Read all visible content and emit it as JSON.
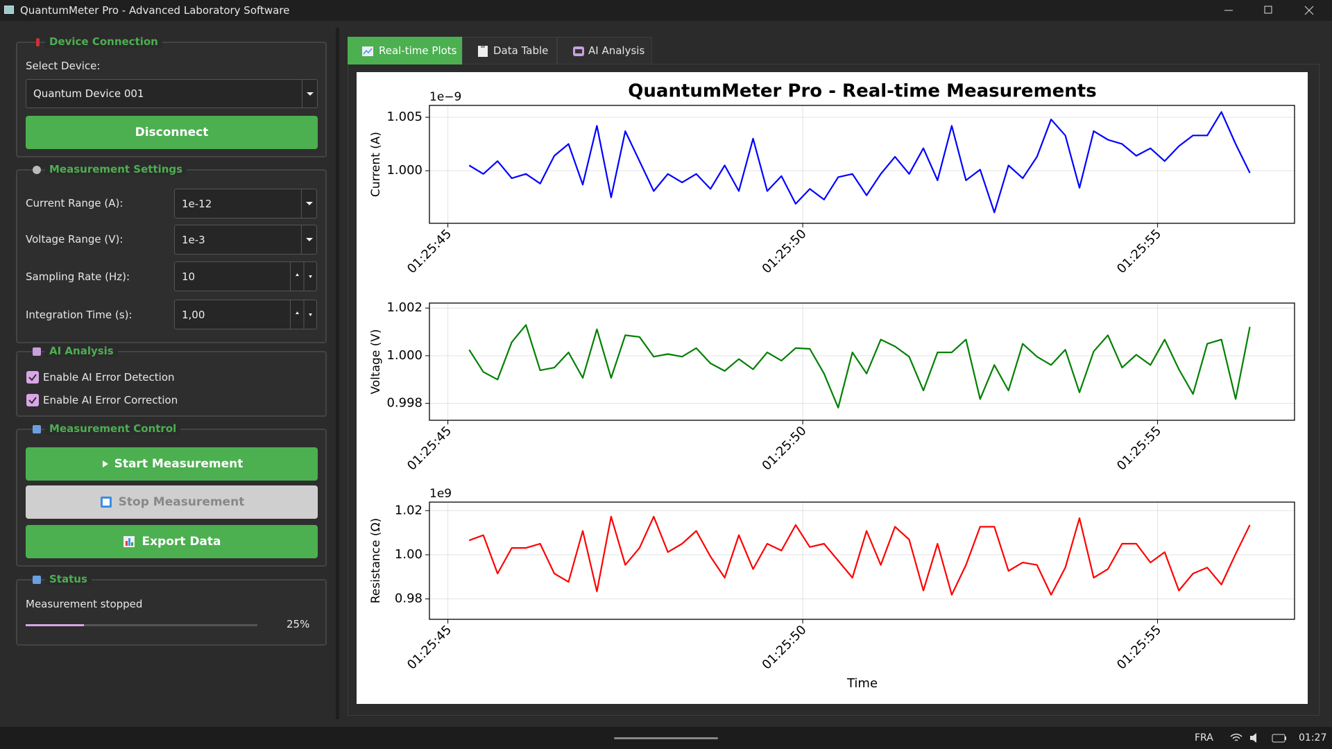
{
  "window": {
    "title": "QuantumMeter Pro - Advanced Laboratory Software"
  },
  "device": {
    "title": "Device Connection",
    "select_label": "Select Device:",
    "device": "Quantum Device 001",
    "button": "Disconnect"
  },
  "settings": {
    "title": "Measurement Settings",
    "rows": [
      [
        "Current Range (A):",
        "1e-12"
      ],
      [
        "Voltage Range (V):",
        "1e-3"
      ],
      [
        "Sampling Rate (Hz):",
        "10"
      ],
      [
        "Integration Time (s):",
        "1,00"
      ]
    ]
  },
  "ai": {
    "title": "AI Analysis",
    "options": [
      "Enable AI Error Detection",
      "Enable AI Error Correction"
    ]
  },
  "control": {
    "title": "Measurement Control",
    "buttons": [
      "Start Measurement",
      "Stop Measurement",
      "Export Data"
    ]
  },
  "status": {
    "title": "Status",
    "message": "Measurement stopped",
    "progress": {
      "value": 25,
      "label": "25%"
    }
  },
  "tabs": [
    "Real-time Plots",
    "Data Table",
    "AI Analysis"
  ],
  "figure": {
    "title": "QuantumMeter Pro - Real-time Measurements",
    "xlabel": "Time"
  },
  "chart_data": [
    {
      "type": "line",
      "ylabel": "Current (A)",
      "offset_label": "1e−9",
      "color": "#0000ff",
      "grid": true,
      "x": [
        5145.3,
        5145.5,
        5145.7,
        5145.9,
        5146.1,
        5146.3,
        5146.5,
        5146.7,
        5146.9,
        5147.1,
        5147.3,
        5147.5,
        5147.7,
        5147.9,
        5148.1,
        5148.3,
        5148.5,
        5148.7,
        5148.9,
        5149.1,
        5149.3,
        5149.5,
        5149.7,
        5149.9,
        5150.1,
        5150.3,
        5150.5,
        5150.7,
        5150.9,
        5151.1,
        5151.3,
        5151.5,
        5151.7,
        5151.9,
        5152.1,
        5152.3,
        5152.5,
        5152.7,
        5152.9,
        5153.1,
        5153.3,
        5153.5,
        5153.7,
        5153.9,
        5154.1,
        5154.3,
        5154.5,
        5154.7,
        5154.9,
        5155.1,
        5155.3,
        5155.5,
        5155.7,
        5155.9,
        5156.1,
        5156.3
      ],
      "values": [
        1.0005e-09,
        9.997e-10,
        1.0009e-09,
        9.993e-10,
        9.997e-10,
        9.988e-10,
        1.0014e-09,
        1.0025e-09,
        9.987e-10,
        1.0042e-09,
        9.975e-10,
        1.0037e-09,
        1.0009e-09,
        9.981e-10,
        9.997e-10,
        9.989e-10,
        9.997e-10,
        9.983e-10,
        1.0005e-09,
        9.981e-10,
        1.003e-09,
        9.981e-10,
        9.995e-10,
        9.969e-10,
        9.983e-10,
        9.973e-10,
        9.994e-10,
        9.997e-10,
        9.977e-10,
        9.997e-10,
        1.0013e-09,
        9.997e-10,
        1.0021e-09,
        9.991e-10,
        1.0042e-09,
        9.991e-10,
        1.0001e-09,
        9.961e-10,
        1.0005e-09,
        9.993e-10,
        1.0013e-09,
        1.0048e-09,
        1.0033e-09,
        9.984e-10,
        1.0037e-09,
        1.0029e-09,
        1.0025e-09,
        1.0014e-09,
        1.0021e-09,
        1.0009e-09,
        1.0023e-09,
        1.0033e-09,
        1.0033e-09,
        1.0055e-09,
        1.0025e-09,
        9.998e-10
      ],
      "xlim": [
        5144.74,
        5156.93
      ],
      "xticks": [
        {
          "value": 5145,
          "label": "01:25:45"
        },
        {
          "value": 5150,
          "label": "01:25:50"
        },
        {
          "value": 5155,
          "label": "01:25:55"
        }
      ],
      "ylim": [
        9.9508e-10,
        1.00611e-09
      ],
      "yticks": [
        {
          "value": 1e-09,
          "label": "1.000"
        },
        {
          "value": 1.005e-09,
          "label": "1.005"
        }
      ]
    },
    {
      "type": "line",
      "ylabel": "Voltage (V)",
      "color": "#008000",
      "grid": true,
      "x": [
        5145.3,
        5145.5,
        5145.7,
        5145.9,
        5146.1,
        5146.3,
        5146.5,
        5146.7,
        5146.9,
        5147.1,
        5147.3,
        5147.5,
        5147.7,
        5147.9,
        5148.1,
        5148.3,
        5148.5,
        5148.7,
        5148.9,
        5149.1,
        5149.3,
        5149.5,
        5149.7,
        5149.9,
        5150.1,
        5150.3,
        5150.5,
        5150.7,
        5150.9,
        5151.1,
        5151.3,
        5151.5,
        5151.7,
        5151.9,
        5152.1,
        5152.3,
        5152.5,
        5152.7,
        5152.9,
        5153.1,
        5153.3,
        5153.5,
        5153.7,
        5153.9,
        5154.1,
        5154.3,
        5154.5,
        5154.7,
        5154.9,
        5155.1,
        5155.3,
        5155.5,
        5155.7,
        5155.9,
        5156.1,
        5156.3
      ],
      "values": [
        1.00025,
        0.99932,
        0.999,
        1.00057,
        1.00129,
        0.99939,
        0.9995,
        1.00014,
        0.99907,
        1.00111,
        0.99907,
        1.00086,
        1.00079,
        0.99996,
        1.00007,
        0.99996,
        1.00032,
        0.99968,
        0.99936,
        0.99986,
        0.99943,
        1.00014,
        0.99979,
        1.00032,
        1.00029,
        0.99925,
        0.99782,
        1.00014,
        0.99925,
        1.00068,
        1.00039,
        0.99996,
        0.99854,
        1.00014,
        1.00014,
        1.00068,
        0.99818,
        0.99961,
        0.99854,
        1.0005,
        0.99996,
        0.99961,
        1.00025,
        0.99846,
        1.00018,
        1.00086,
        0.9995,
        1.00004,
        0.99961,
        1.00068,
        0.99943,
        0.99839,
        1.0005,
        1.00068,
        0.99818,
        1.00121
      ],
      "xlim": [
        5144.74,
        5156.93
      ],
      "xticks": [
        {
          "value": 5145,
          "label": "01:25:45"
        },
        {
          "value": 5150,
          "label": "01:25:50"
        },
        {
          "value": 5155,
          "label": "01:25:55"
        }
      ],
      "ylim": [
        0.99729,
        1.00221
      ],
      "yticks": [
        0.998,
        {
          "value": 1.0,
          "label": "1.000"
        },
        1.002
      ]
    },
    {
      "type": "line",
      "ylabel": "Resistance (Ω)",
      "offset_label": "1e9",
      "color": "#ff0000",
      "grid": true,
      "x": [
        5145.3,
        5145.5,
        5145.7,
        5145.9,
        5146.1,
        5146.3,
        5146.5,
        5146.7,
        5146.9,
        5147.1,
        5147.3,
        5147.5,
        5147.7,
        5147.9,
        5148.1,
        5148.3,
        5148.5,
        5148.7,
        5148.9,
        5149.1,
        5149.3,
        5149.5,
        5149.7,
        5149.9,
        5150.1,
        5150.3,
        5150.5,
        5150.7,
        5150.9,
        5151.1,
        5151.3,
        5151.5,
        5151.7,
        5151.9,
        5152.1,
        5152.3,
        5152.5,
        5152.7,
        5152.9,
        5153.1,
        5153.3,
        5153.5,
        5153.7,
        5153.9,
        5154.1,
        5154.3,
        5154.5,
        5154.7,
        5154.9,
        5155.1,
        5155.3,
        5155.5,
        5155.7,
        5155.9,
        5156.1,
        5156.3
      ],
      "values": [
        1006500000.0,
        1008900000.0,
        991500000.0,
        1003100000.0,
        1003100000.0,
        1005000000.0,
        991500000.0,
        987700000.0,
        1010800000.0,
        983400000.0,
        1017300000.0,
        995400000.0,
        1003100000.0,
        1017300000.0,
        1001200000.0,
        1005000000.0,
        1010800000.0,
        999200000.0,
        989600000.0,
        1008900000.0,
        993500000.0,
        1005000000.0,
        1001900000.0,
        1013500000.0,
        1003500000.0,
        1005000000.0,
        997300000.0,
        989600000.0,
        1010800000.0,
        995400000.0,
        1012700000.0,
        1006900000.0,
        983800000.0,
        1005000000.0,
        981900000.0,
        995400000.0,
        1012700000.0,
        1012700000.0,
        992700000.0,
        996500000.0,
        995400000.0,
        981900000.0,
        994200000.0,
        1016600000.0,
        989600000.0,
        993500000.0,
        1005000000.0,
        1005000000.0,
        996500000.0,
        1001200000.0,
        983800000.0,
        991500000.0,
        994200000.0,
        986500000.0,
        1000400000.0,
        1013500000.0
      ],
      "xlim": [
        5144.74,
        5156.93
      ],
      "xticks": [
        {
          "value": 5145,
          "label": "01:25:45"
        },
        {
          "value": 5150,
          "label": "01:25:50"
        },
        {
          "value": 5155,
          "label": "01:25:55"
        }
      ],
      "ylim": [
        970770000.0,
        1023850000.0
      ],
      "yticks": [
        {
          "value": 980000000.0,
          "label": "0.98"
        },
        {
          "value": 1000000000.0,
          "label": "1.00"
        },
        {
          "value": 1020000000.0,
          "label": "1.02"
        }
      ]
    }
  ],
  "taskbar": {
    "language": "FRA",
    "clock": "01:27"
  }
}
